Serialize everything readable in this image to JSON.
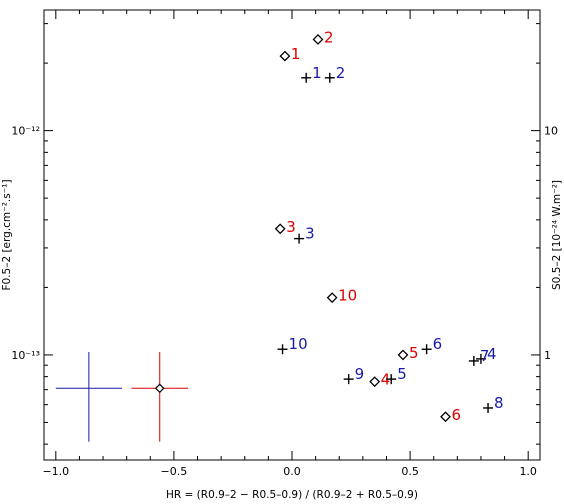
{
  "chart_data": {
    "type": "scatter",
    "xlabel": "HR = (R0.9–2 − R0.5–0.9) / (R0.9–2 + R0.5–0.9)",
    "ylabel": "F0.5–2 [erg.cm⁻².s⁻¹]",
    "y2label": "S0.5–2 [10⁻²⁴ W.m⁻²]",
    "xlim": [
      -1.05,
      1.05
    ],
    "ylim": [
      3.4e-14,
      3.45e-12
    ],
    "yscale": "log",
    "grid": false,
    "x_ticks": [
      {
        "v": -1.0,
        "label": "−1.0"
      },
      {
        "v": -0.5,
        "label": "−0.5"
      },
      {
        "v": 0.0,
        "label": "0.0"
      },
      {
        "v": 0.5,
        "label": "0.5"
      },
      {
        "v": 1.0,
        "label": "1.0"
      }
    ],
    "y_ticks": [
      {
        "v": 1e-13,
        "label": "10⁻¹³"
      },
      {
        "v": 1e-12,
        "label": "10⁻¹²"
      }
    ],
    "y2_ticks": [
      {
        "v": 1e-13,
        "label": "1"
      },
      {
        "v": 1e-12,
        "label": "10"
      }
    ],
    "series": [
      {
        "marker": "diamond",
        "color": "#000000",
        "label_color": "#dd0000",
        "points": [
          {
            "label": "1",
            "x": -0.03,
            "y": 2.15e-12
          },
          {
            "label": "2",
            "x": 0.11,
            "y": 2.55e-12
          },
          {
            "label": "3",
            "x": -0.05,
            "y": 3.65e-13
          },
          {
            "label": "10",
            "x": 0.17,
            "y": 1.8e-13
          },
          {
            "label": "5",
            "x": 0.47,
            "y": 1e-13
          },
          {
            "label": "4",
            "x": 0.35,
            "y": 7.6e-14
          },
          {
            "label": "6",
            "x": 0.65,
            "y": 5.3e-14
          }
        ]
      },
      {
        "marker": "plus",
        "color": "#000000",
        "label_color": "#1a1aaa",
        "points": [
          {
            "label": "1",
            "x": 0.06,
            "y": 1.72e-12
          },
          {
            "label": "2",
            "x": 0.16,
            "y": 1.72e-12
          },
          {
            "label": "3",
            "x": 0.03,
            "y": 3.3e-13
          },
          {
            "label": "10",
            "x": -0.04,
            "y": 1.06e-13
          },
          {
            "label": "6",
            "x": 0.57,
            "y": 1.06e-13
          },
          {
            "label": "4",
            "x": 0.8,
            "y": 9.6e-14
          },
          {
            "label": "7",
            "x": 0.77,
            "y": 9.4e-14
          },
          {
            "label": "9",
            "x": 0.24,
            "y": 7.8e-14
          },
          {
            "label": "5",
            "x": 0.42,
            "y": 7.8e-14
          },
          {
            "label": "8",
            "x": 0.83,
            "y": 5.8e-14
          }
        ]
      }
    ],
    "error_crosses": [
      {
        "x": -0.86,
        "y": 7.1e-14,
        "x_err": 0.14,
        "y_low": 4.1e-14,
        "y_high": 1.03e-13,
        "color": "#1a1aaa",
        "marker": "none"
      },
      {
        "x": -0.56,
        "y": 7.1e-14,
        "x_err": 0.12,
        "y_low": 4.1e-14,
        "y_high": 1.03e-13,
        "color": "#dd0000",
        "marker": "diamond"
      }
    ]
  }
}
